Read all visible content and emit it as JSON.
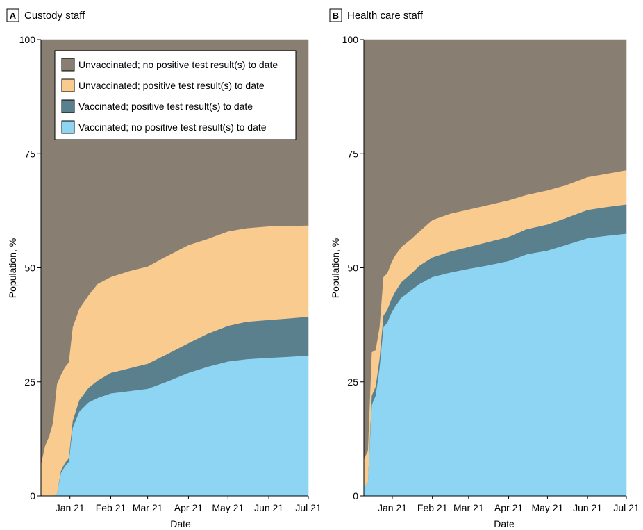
{
  "chart_data": [
    {
      "type": "area",
      "panel_letter": "A",
      "title": "Custody staff",
      "xlabel": "Date",
      "ylabel": "Population, %",
      "ylim": [
        0,
        100
      ],
      "yticks": [
        "0",
        "25",
        "50",
        "75",
        "100"
      ],
      "xticks": [
        "Jan 21",
        "Feb 21",
        "Mar 21",
        "Apr 21",
        "May 21",
        "Jun 21",
        "Jul 21"
      ],
      "x": [
        "2020-12-10",
        "2020-12-13",
        "2020-12-16",
        "2020-12-19",
        "2020-12-22",
        "2020-12-25",
        "2020-12-28",
        "2020-12-31",
        "2021-01-03",
        "2021-01-08",
        "2021-01-15",
        "2021-01-22",
        "2021-02-01",
        "2021-02-15",
        "2021-03-01",
        "2021-03-15",
        "2021-04-01",
        "2021-04-15",
        "2021-05-01",
        "2021-05-15",
        "2021-06-01",
        "2021-06-15",
        "2021-07-01"
      ],
      "stacked": true,
      "legend_position": "top-left",
      "series": [
        {
          "name": "Vaccinated; no positive test result(s) to date",
          "color": "#8DD5F2",
          "values": [
            0,
            0,
            0,
            0,
            0.5,
            5,
            6.5,
            7.5,
            15,
            18.5,
            20.5,
            21.5,
            22.5,
            23,
            23.5,
            25,
            27,
            28.3,
            29.5,
            30,
            30.3,
            30.5,
            30.8
          ]
        },
        {
          "name": "Vaccinated; positive test result(s) to date",
          "color": "#5A7F8D",
          "values": [
            0,
            0,
            0,
            0,
            0,
            0.5,
            0.7,
            0.8,
            1.5,
            2.5,
            3.2,
            3.8,
            4.5,
            5,
            5.5,
            6,
            6.5,
            7.2,
            7.8,
            8.2,
            8.3,
            8.4,
            8.5
          ]
        },
        {
          "name": "Unvaccinated; positive test result(s) to date",
          "color": "#F9CB8F",
          "values": [
            7,
            11,
            13,
            16,
            24,
            21,
            21,
            21,
            20.5,
            20,
            20.3,
            21.2,
            21,
            21.3,
            21.3,
            21.5,
            21.5,
            20.8,
            20.7,
            20.5,
            20.5,
            20.3,
            20
          ]
        },
        {
          "name": "Unvaccinated; no positive test result(s) to date",
          "color": "#887F72",
          "values": [
            93,
            89,
            87,
            84,
            75.5,
            73.5,
            71.8,
            70.7,
            63,
            59,
            56,
            53.5,
            52,
            50.7,
            49.7,
            47.5,
            45,
            43.7,
            42,
            41.3,
            40.9,
            40.8,
            40.7
          ]
        }
      ]
    },
    {
      "type": "area",
      "panel_letter": "B",
      "title": "Health care staff",
      "xlabel": "Date",
      "ylabel": "Population, %",
      "ylim": [
        0,
        100
      ],
      "yticks": [
        "0",
        "25",
        "50",
        "75",
        "100"
      ],
      "xticks": [
        "Jan 21",
        "Feb 21",
        "Mar 21",
        "Apr 21",
        "May 21",
        "Jun 21",
        "Jul 21"
      ],
      "x": [
        "2020-12-10",
        "2020-12-13",
        "2020-12-16",
        "2020-12-19",
        "2020-12-22",
        "2020-12-25",
        "2020-12-28",
        "2020-12-31",
        "2021-01-03",
        "2021-01-08",
        "2021-01-15",
        "2021-01-22",
        "2021-02-01",
        "2021-02-15",
        "2021-03-01",
        "2021-03-15",
        "2021-04-01",
        "2021-04-15",
        "2021-05-01",
        "2021-05-15",
        "2021-06-01",
        "2021-06-15",
        "2021-07-01"
      ],
      "stacked": true,
      "series": [
        {
          "name": "Vaccinated; no positive test result(s) to date",
          "color": "#8DD5F2",
          "values": [
            2,
            3,
            20,
            22,
            28,
            37,
            38,
            40,
            41.5,
            43.5,
            45,
            46.5,
            48,
            49,
            49.8,
            50.5,
            51.5,
            53,
            53.8,
            55,
            56.5,
            57,
            57.5
          ]
        },
        {
          "name": "Vaccinated; positive test result(s) to date",
          "color": "#5A7F8D",
          "values": [
            0,
            0,
            2,
            2,
            2,
            2.5,
            2.8,
            3,
            3.2,
            3.4,
            3.6,
            4,
            4.3,
            4.6,
            4.8,
            5.1,
            5.3,
            5.5,
            5.7,
            5.9,
            6.2,
            6.3,
            6.4
          ]
        },
        {
          "name": "Unvaccinated; positive test result(s) to date",
          "color": "#F9CB8F",
          "values": [
            6,
            7,
            9.5,
            8,
            7,
            8.5,
            8,
            8,
            8,
            7.7,
            7.6,
            7.5,
            8.2,
            8.3,
            8.2,
            8.1,
            8,
            7.5,
            7.5,
            7.2,
            7.2,
            7.3,
            7.5
          ]
        },
        {
          "name": "Unvaccinated; no positive test result(s) to date",
          "color": "#887F72",
          "values": [
            92,
            90,
            68.5,
            68,
            63,
            52,
            51.2,
            49,
            47.3,
            45.4,
            43.8,
            42,
            39.5,
            38.1,
            37.2,
            36.3,
            35.2,
            34,
            33,
            31.9,
            30.1,
            29.4,
            28.6
          ]
        }
      ]
    }
  ],
  "legend": {
    "items": [
      {
        "label": "Unvaccinated; no positive test result(s) to date",
        "color": "#887F72"
      },
      {
        "label": "Unvaccinated; positive test result(s) to date",
        "color": "#F9CB8F"
      },
      {
        "label": "Vaccinated; positive test result(s) to date",
        "color": "#5A7F8D"
      },
      {
        "label": "Vaccinated; no positive test result(s) to date",
        "color": "#8DD5F2"
      }
    ]
  }
}
